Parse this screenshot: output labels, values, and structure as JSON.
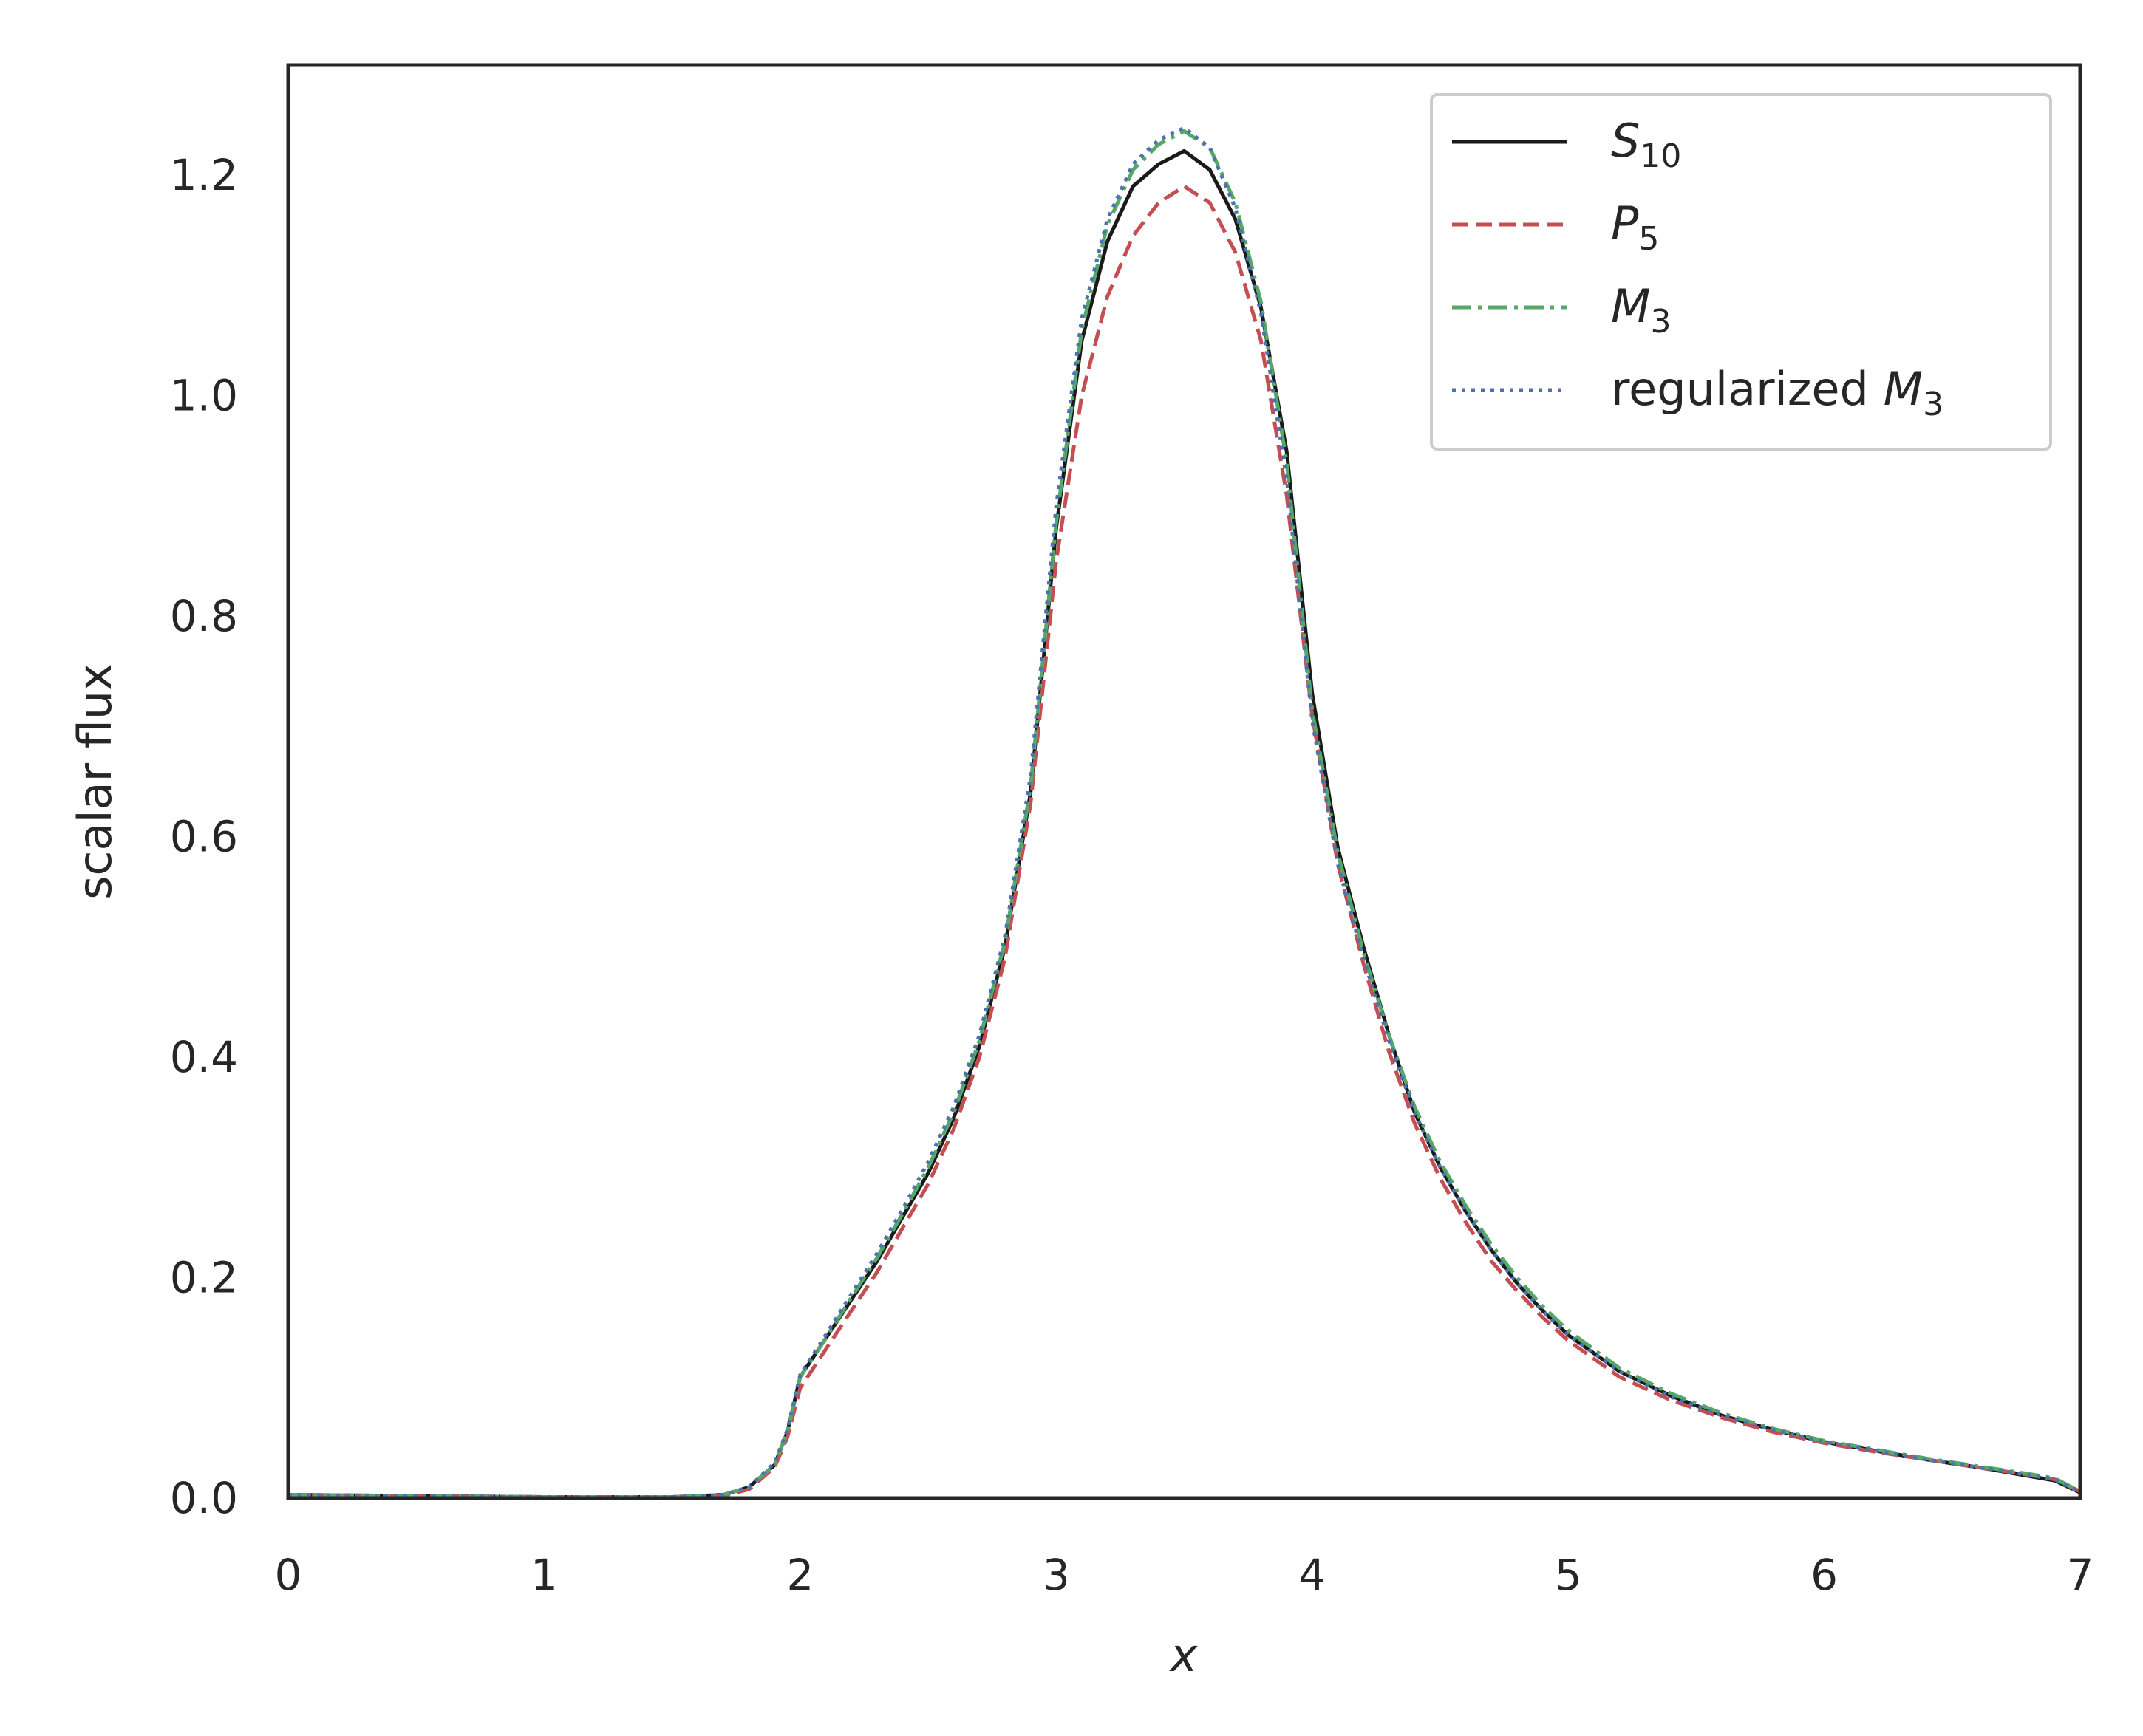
{
  "chart_data": {
    "type": "line",
    "title": "",
    "xlabel": "x",
    "ylabel": "scalar flux",
    "xlim": [
      0,
      7
    ],
    "ylim": [
      0,
      1.3
    ],
    "xticks": [
      "0",
      "1",
      "2",
      "3",
      "4",
      "5",
      "6",
      "7"
    ],
    "yticks": [
      "0.0",
      "0.2",
      "0.4",
      "0.6",
      "0.8",
      "1.0",
      "1.2"
    ],
    "grid": false,
    "legend_position": "top-right",
    "series": [
      {
        "name": "S10",
        "label_main": "S",
        "label_sub": "10",
        "color": "#1a1a1a",
        "style": "solid",
        "points": [
          [
            0,
            0.003
          ],
          [
            0.5,
            0.002
          ],
          [
            1.0,
            0.001
          ],
          [
            1.5,
            0.001
          ],
          [
            1.7,
            0.003
          ],
          [
            1.8,
            0.01
          ],
          [
            1.9,
            0.03
          ],
          [
            1.95,
            0.06
          ],
          [
            2.0,
            0.11
          ],
          [
            2.1,
            0.145
          ],
          [
            2.2,
            0.18
          ],
          [
            2.3,
            0.215
          ],
          [
            2.4,
            0.255
          ],
          [
            2.5,
            0.295
          ],
          [
            2.6,
            0.345
          ],
          [
            2.7,
            0.41
          ],
          [
            2.8,
            0.5
          ],
          [
            2.9,
            0.64
          ],
          [
            3.0,
            0.88
          ],
          [
            3.1,
            1.05
          ],
          [
            3.2,
            1.14
          ],
          [
            3.3,
            1.19
          ],
          [
            3.4,
            1.21
          ],
          [
            3.5,
            1.222
          ],
          [
            3.6,
            1.205
          ],
          [
            3.7,
            1.16
          ],
          [
            3.8,
            1.08
          ],
          [
            3.9,
            0.95
          ],
          [
            4.0,
            0.73
          ],
          [
            4.1,
            0.59
          ],
          [
            4.2,
            0.5
          ],
          [
            4.3,
            0.42
          ],
          [
            4.4,
            0.35
          ],
          [
            4.5,
            0.3
          ],
          [
            4.6,
            0.26
          ],
          [
            4.7,
            0.225
          ],
          [
            4.8,
            0.195
          ],
          [
            4.9,
            0.17
          ],
          [
            5.0,
            0.148
          ],
          [
            5.2,
            0.115
          ],
          [
            5.4,
            0.093
          ],
          [
            5.6,
            0.075
          ],
          [
            5.8,
            0.062
          ],
          [
            6.0,
            0.051
          ],
          [
            6.2,
            0.043
          ],
          [
            6.4,
            0.035
          ],
          [
            6.6,
            0.028
          ],
          [
            6.8,
            0.02
          ],
          [
            6.9,
            0.016
          ],
          [
            7.0,
            0.005
          ]
        ]
      },
      {
        "name": "P5",
        "label_main": "P",
        "label_sub": "5",
        "color": "#c44e52",
        "style": "dashed",
        "points": [
          [
            0,
            0.003
          ],
          [
            0.5,
            0.002
          ],
          [
            1.0,
            0.001
          ],
          [
            1.5,
            0.001
          ],
          [
            1.7,
            0.002
          ],
          [
            1.8,
            0.008
          ],
          [
            1.9,
            0.028
          ],
          [
            1.95,
            0.055
          ],
          [
            2.0,
            0.1
          ],
          [
            2.1,
            0.135
          ],
          [
            2.2,
            0.17
          ],
          [
            2.3,
            0.205
          ],
          [
            2.4,
            0.245
          ],
          [
            2.5,
            0.285
          ],
          [
            2.6,
            0.335
          ],
          [
            2.7,
            0.4
          ],
          [
            2.8,
            0.49
          ],
          [
            2.9,
            0.63
          ],
          [
            3.0,
            0.85
          ],
          [
            3.1,
            1.0
          ],
          [
            3.2,
            1.09
          ],
          [
            3.3,
            1.145
          ],
          [
            3.4,
            1.175
          ],
          [
            3.5,
            1.19
          ],
          [
            3.6,
            1.175
          ],
          [
            3.7,
            1.13
          ],
          [
            3.8,
            1.05
          ],
          [
            3.9,
            0.91
          ],
          [
            4.0,
            0.71
          ],
          [
            4.1,
            0.575
          ],
          [
            4.2,
            0.485
          ],
          [
            4.3,
            0.405
          ],
          [
            4.4,
            0.34
          ],
          [
            4.5,
            0.29
          ],
          [
            4.6,
            0.25
          ],
          [
            4.7,
            0.215
          ],
          [
            4.8,
            0.188
          ],
          [
            4.9,
            0.164
          ],
          [
            5.0,
            0.143
          ],
          [
            5.2,
            0.11
          ],
          [
            5.4,
            0.089
          ],
          [
            5.6,
            0.073
          ],
          [
            5.8,
            0.06
          ],
          [
            6.0,
            0.05
          ],
          [
            6.2,
            0.042
          ],
          [
            6.4,
            0.035
          ],
          [
            6.6,
            0.028
          ],
          [
            6.8,
            0.021
          ],
          [
            6.9,
            0.017
          ],
          [
            7.0,
            0.006
          ]
        ]
      },
      {
        "name": "M3",
        "label_main": "M",
        "label_sub": "3",
        "color": "#55a868",
        "style": "dashdot",
        "points": [
          [
            0,
            0.003
          ],
          [
            0.5,
            0.002
          ],
          [
            1.0,
            0.001
          ],
          [
            1.5,
            0.001
          ],
          [
            1.7,
            0.003
          ],
          [
            1.8,
            0.01
          ],
          [
            1.9,
            0.03
          ],
          [
            1.95,
            0.06
          ],
          [
            2.0,
            0.11
          ],
          [
            2.1,
            0.145
          ],
          [
            2.2,
            0.182
          ],
          [
            2.3,
            0.218
          ],
          [
            2.4,
            0.258
          ],
          [
            2.5,
            0.3
          ],
          [
            2.6,
            0.35
          ],
          [
            2.7,
            0.415
          ],
          [
            2.8,
            0.505
          ],
          [
            2.9,
            0.645
          ],
          [
            3.0,
            0.885
          ],
          [
            3.1,
            1.06
          ],
          [
            3.2,
            1.155
          ],
          [
            3.3,
            1.205
          ],
          [
            3.4,
            1.228
          ],
          [
            3.5,
            1.24
          ],
          [
            3.6,
            1.225
          ],
          [
            3.7,
            1.175
          ],
          [
            3.8,
            1.085
          ],
          [
            3.9,
            0.94
          ],
          [
            4.0,
            0.715
          ],
          [
            4.1,
            0.585
          ],
          [
            4.2,
            0.495
          ],
          [
            4.3,
            0.42
          ],
          [
            4.4,
            0.355
          ],
          [
            4.5,
            0.305
          ],
          [
            4.6,
            0.265
          ],
          [
            4.7,
            0.23
          ],
          [
            4.8,
            0.2
          ],
          [
            4.9,
            0.174
          ],
          [
            5.0,
            0.152
          ],
          [
            5.2,
            0.118
          ],
          [
            5.4,
            0.095
          ],
          [
            5.6,
            0.077
          ],
          [
            5.8,
            0.063
          ],
          [
            6.0,
            0.052
          ],
          [
            6.2,
            0.044
          ],
          [
            6.4,
            0.036
          ],
          [
            6.6,
            0.029
          ],
          [
            6.8,
            0.022
          ],
          [
            6.9,
            0.018
          ],
          [
            7.0,
            0.006
          ]
        ]
      },
      {
        "name": "regularized M3",
        "label_main": "regularized M",
        "label_sub": "3",
        "color": "#4c72b0",
        "style": "dotted",
        "points": [
          [
            0,
            0.003
          ],
          [
            0.5,
            0.002
          ],
          [
            1.0,
            0.001
          ],
          [
            1.5,
            0.001
          ],
          [
            1.7,
            0.003
          ],
          [
            1.8,
            0.01
          ],
          [
            1.9,
            0.032
          ],
          [
            1.95,
            0.062
          ],
          [
            2.0,
            0.112
          ],
          [
            2.1,
            0.148
          ],
          [
            2.2,
            0.185
          ],
          [
            2.3,
            0.222
          ],
          [
            2.4,
            0.262
          ],
          [
            2.5,
            0.305
          ],
          [
            2.6,
            0.355
          ],
          [
            2.7,
            0.42
          ],
          [
            2.8,
            0.51
          ],
          [
            2.9,
            0.655
          ],
          [
            3.0,
            0.9
          ],
          [
            3.1,
            1.07
          ],
          [
            3.2,
            1.16
          ],
          [
            3.3,
            1.21
          ],
          [
            3.4,
            1.232
          ],
          [
            3.5,
            1.243
          ],
          [
            3.6,
            1.225
          ],
          [
            3.7,
            1.17
          ],
          [
            3.8,
            1.075
          ],
          [
            3.9,
            0.925
          ],
          [
            4.0,
            0.705
          ],
          [
            4.1,
            0.575
          ],
          [
            4.2,
            0.49
          ],
          [
            4.3,
            0.415
          ],
          [
            4.4,
            0.35
          ],
          [
            4.5,
            0.3
          ],
          [
            4.6,
            0.26
          ],
          [
            4.7,
            0.225
          ],
          [
            4.8,
            0.195
          ],
          [
            4.9,
            0.17
          ],
          [
            5.0,
            0.148
          ],
          [
            5.2,
            0.115
          ],
          [
            5.4,
            0.092
          ],
          [
            5.6,
            0.075
          ],
          [
            5.8,
            0.062
          ],
          [
            6.0,
            0.051
          ],
          [
            6.2,
            0.043
          ],
          [
            6.4,
            0.035
          ],
          [
            6.6,
            0.028
          ],
          [
            6.8,
            0.021
          ],
          [
            6.9,
            0.017
          ],
          [
            7.0,
            0.005
          ]
        ]
      }
    ]
  }
}
